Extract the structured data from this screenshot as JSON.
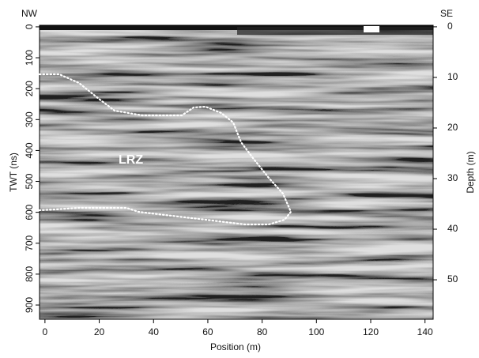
{
  "chart_data": {
    "type": "radargram",
    "annotations": [
      "NW",
      "SE",
      "LRZ"
    ],
    "x_label": "Position (m)",
    "y_label": "TWT (ns)",
    "y2_label": "Depth (m)",
    "xlim": [
      -2,
      143
    ],
    "xticks": [
      0,
      20,
      40,
      60,
      80,
      100,
      120,
      140
    ],
    "ylim": [
      -5,
      946
    ],
    "yticks": [
      0,
      100,
      200,
      300,
      400,
      500,
      600,
      700,
      800,
      900
    ],
    "y_inverted": true,
    "y2lim": [
      -0.3,
      57.8
    ],
    "y2ticks": [
      0,
      10,
      20,
      30,
      40,
      50
    ]
  }
}
